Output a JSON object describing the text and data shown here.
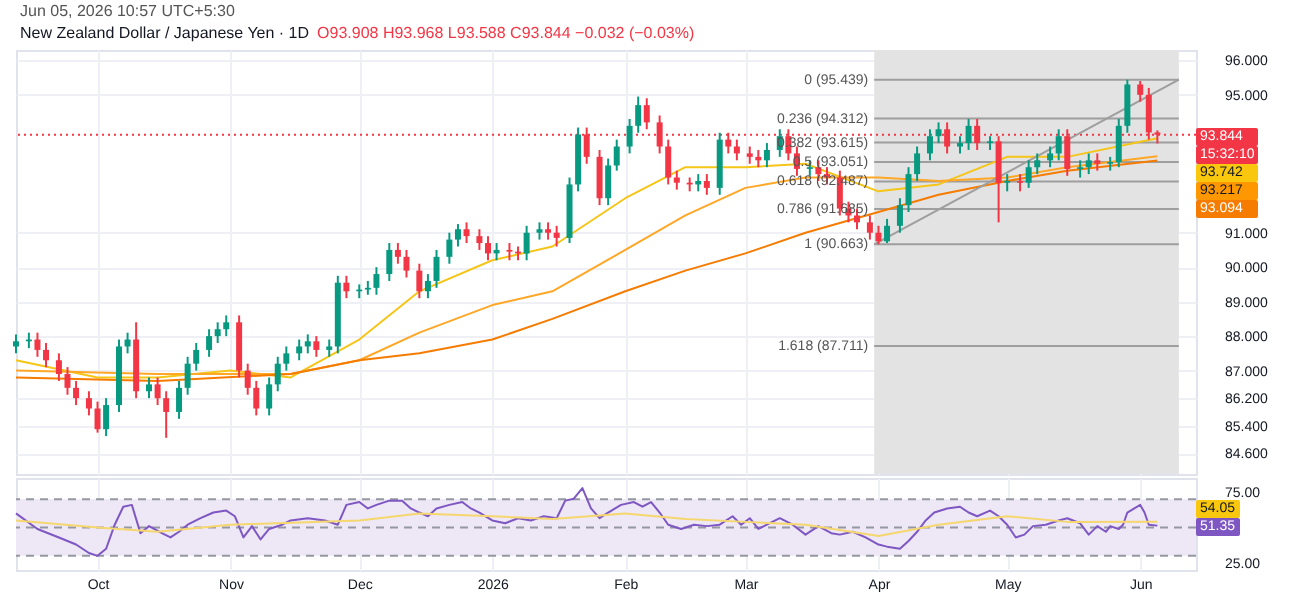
{
  "chart_data": [
    {
      "type": "candlestick",
      "title": "New Zealand Dollar / Japanese Yen · 1D",
      "subtitle": "O93.908 H93.968 L93.588 C93.844 −0.032 (−0.03%)",
      "annotations": [
        "Jun 05, 2026 10:57 UTC+5:30",
        "93.844",
        "15:32:10",
        "93.742",
        "93.217",
        "93.094"
      ],
      "xlim": [
        "2025-09-12",
        "2026-06-14"
      ],
      "ylim": [
        84.0,
        96.3
      ],
      "yticks": [
        {
          "value": 84.6,
          "label": "84.600"
        },
        {
          "value": 85.4,
          "label": "85.400"
        },
        {
          "value": 86.2,
          "label": "86.200"
        },
        {
          "value": 87,
          "label": "87.000"
        },
        {
          "value": 88,
          "label": "88.000"
        },
        {
          "value": 89,
          "label": "89.000"
        },
        {
          "value": 90,
          "label": "90.000"
        },
        {
          "value": 91,
          "label": "91.000"
        },
        {
          "value": 95,
          "label": "95.000"
        },
        {
          "value": 96,
          "label": "96.000"
        }
      ],
      "grid": true,
      "tick_labels": "y",
      "x": [
        "2025-09-12",
        "2025-09-15",
        "2025-09-17",
        "2025-09-19",
        "2025-09-22",
        "2025-09-24",
        "2025-09-26",
        "2025-09-29",
        "2025-10-01",
        "2025-10-03",
        "2025-10-06",
        "2025-10-08",
        "2025-10-10",
        "2025-10-13",
        "2025-10-15",
        "2025-10-17",
        "2025-10-20",
        "2025-10-22",
        "2025-10-24",
        "2025-10-27",
        "2025-10-29",
        "2025-10-31",
        "2025-11-03",
        "2025-11-05",
        "2025-11-07",
        "2025-11-10",
        "2025-11-12",
        "2025-11-14",
        "2025-11-17",
        "2025-11-19",
        "2025-11-21",
        "2025-11-24",
        "2025-11-26",
        "2025-11-28",
        "2025-12-01",
        "2025-12-03",
        "2025-12-05",
        "2025-12-08",
        "2025-12-10",
        "2025-12-12",
        "2025-12-15",
        "2025-12-17",
        "2025-12-19",
        "2025-12-22",
        "2025-12-24",
        "2025-12-26",
        "2025-12-29",
        "2025-12-31",
        "2026-01-02",
        "2026-01-05",
        "2026-01-07",
        "2026-01-09",
        "2026-01-12",
        "2026-01-14",
        "2026-01-16",
        "2026-01-19",
        "2026-01-21",
        "2026-01-23",
        "2026-01-26",
        "2026-01-28",
        "2026-01-30",
        "2026-02-02",
        "2026-02-04",
        "2026-02-06",
        "2026-02-09",
        "2026-02-11",
        "2026-02-13",
        "2026-02-16",
        "2026-02-18",
        "2026-02-20",
        "2026-02-23",
        "2026-02-25",
        "2026-02-27",
        "2026-03-02",
        "2026-03-04",
        "2026-03-06",
        "2026-03-09",
        "2026-03-11",
        "2026-03-13",
        "2026-03-16",
        "2026-03-18",
        "2026-03-20",
        "2026-03-23",
        "2026-03-25",
        "2026-03-27",
        "2026-03-30",
        "2026-04-01",
        "2026-04-03",
        "2026-04-06",
        "2026-04-08",
        "2026-04-10",
        "2026-04-13",
        "2026-04-15",
        "2026-04-17",
        "2026-04-20",
        "2026-04-22",
        "2026-04-24",
        "2026-04-27",
        "2026-04-29",
        "2026-05-01",
        "2026-05-04",
        "2026-05-06",
        "2026-05-08",
        "2026-05-11",
        "2026-05-13",
        "2026-05-15",
        "2026-05-18",
        "2026-05-20",
        "2026-05-22",
        "2026-05-25",
        "2026-05-27",
        "2026-05-29",
        "2026-06-01",
        "2026-06-03",
        "2026-06-05"
      ],
      "ohlc": [
        [
          87.7,
          88.05,
          87.5,
          87.85
        ],
        [
          87.85,
          88.1,
          87.65,
          87.9
        ],
        [
          87.9,
          88.1,
          87.4,
          87.6
        ],
        [
          87.6,
          87.8,
          87.1,
          87.3
        ],
        [
          87.3,
          87.5,
          86.7,
          86.9
        ],
        [
          86.9,
          87.1,
          86.3,
          86.5
        ],
        [
          86.5,
          86.7,
          86.0,
          86.2
        ],
        [
          86.2,
          86.4,
          85.7,
          85.9
        ],
        [
          85.9,
          86.1,
          85.2,
          85.3
        ],
        [
          85.3,
          86.2,
          85.1,
          86.0
        ],
        [
          86.0,
          87.9,
          85.8,
          87.7
        ],
        [
          87.7,
          88.1,
          87.5,
          87.9
        ],
        [
          87.9,
          88.4,
          86.2,
          86.4
        ],
        [
          86.4,
          86.8,
          86.2,
          86.6
        ],
        [
          86.6,
          86.8,
          86.0,
          86.2
        ],
        [
          86.2,
          86.4,
          85.05,
          85.8
        ],
        [
          85.8,
          86.7,
          85.6,
          86.5
        ],
        [
          86.5,
          87.4,
          86.3,
          87.2
        ],
        [
          87.2,
          87.8,
          87.0,
          87.6
        ],
        [
          87.6,
          88.2,
          87.4,
          88.0
        ],
        [
          88.0,
          88.4,
          87.8,
          88.2
        ],
        [
          88.2,
          88.6,
          88.0,
          88.4
        ],
        [
          88.4,
          88.6,
          86.8,
          87.0
        ],
        [
          87.0,
          87.2,
          86.3,
          86.5
        ],
        [
          86.5,
          86.7,
          85.7,
          85.9
        ],
        [
          85.9,
          86.8,
          85.7,
          86.6
        ],
        [
          86.6,
          87.4,
          86.4,
          87.2
        ],
        [
          87.2,
          87.7,
          87.0,
          87.5
        ],
        [
          87.5,
          87.9,
          87.3,
          87.7
        ],
        [
          87.7,
          88.05,
          87.5,
          87.85
        ],
        [
          87.85,
          88.0,
          87.4,
          87.6
        ],
        [
          87.6,
          87.9,
          87.4,
          87.7
        ],
        [
          87.7,
          89.75,
          87.5,
          89.55
        ],
        [
          89.55,
          89.75,
          89.1,
          89.3
        ],
        [
          89.3,
          89.5,
          89.1,
          89.35
        ],
        [
          89.35,
          89.6,
          89.2,
          89.4
        ],
        [
          89.4,
          90.0,
          89.2,
          89.8
        ],
        [
          89.8,
          90.7,
          89.6,
          90.5
        ],
        [
          90.5,
          90.7,
          90.1,
          90.3
        ],
        [
          90.3,
          90.5,
          89.7,
          89.9
        ],
        [
          89.9,
          90.1,
          89.1,
          89.3
        ],
        [
          89.3,
          89.8,
          89.1,
          89.6
        ],
        [
          89.6,
          90.5,
          89.4,
          90.3
        ],
        [
          90.3,
          91.0,
          90.1,
          90.8
        ],
        [
          90.8,
          91.25,
          90.6,
          91.1
        ],
        [
          91.1,
          91.3,
          90.7,
          90.9
        ],
        [
          90.9,
          91.1,
          90.5,
          90.7
        ],
        [
          90.7,
          90.9,
          90.2,
          90.4
        ],
        [
          90.4,
          90.7,
          90.2,
          90.5
        ],
        [
          90.5,
          90.7,
          90.2,
          90.45
        ],
        [
          90.45,
          90.6,
          90.2,
          90.4
        ],
        [
          90.4,
          91.2,
          90.2,
          91.0
        ],
        [
          91.0,
          91.3,
          90.8,
          91.1
        ],
        [
          91.1,
          91.3,
          90.8,
          91.0
        ],
        [
          91.0,
          91.2,
          90.6,
          90.85
        ],
        [
          90.85,
          92.6,
          90.7,
          92.4
        ],
        [
          92.4,
          94.05,
          92.2,
          93.85
        ],
        [
          93.85,
          94.05,
          93.0,
          93.2
        ],
        [
          93.2,
          93.4,
          91.8,
          92.0
        ],
        [
          92.0,
          93.15,
          91.8,
          92.95
        ],
        [
          92.95,
          93.7,
          92.8,
          93.5
        ],
        [
          93.5,
          94.3,
          93.3,
          94.1
        ],
        [
          94.1,
          94.95,
          93.9,
          94.7
        ],
        [
          94.7,
          94.9,
          94.0,
          94.2
        ],
        [
          94.2,
          94.4,
          93.3,
          93.5
        ],
        [
          93.5,
          93.7,
          92.4,
          92.6
        ],
        [
          92.6,
          92.8,
          92.25,
          92.45
        ],
        [
          92.45,
          92.6,
          92.2,
          92.4
        ],
        [
          92.4,
          92.7,
          92.2,
          92.5
        ],
        [
          92.5,
          92.7,
          92.1,
          92.3
        ],
        [
          92.3,
          93.9,
          92.1,
          93.7
        ],
        [
          93.7,
          93.9,
          93.3,
          93.5
        ],
        [
          93.5,
          93.7,
          93.1,
          93.3
        ],
        [
          93.3,
          93.5,
          93.0,
          93.2
        ],
        [
          93.2,
          93.4,
          92.9,
          93.1
        ],
        [
          93.1,
          93.6,
          92.9,
          93.4
        ],
        [
          93.4,
          94.0,
          93.2,
          93.8
        ],
        [
          93.8,
          94.0,
          93.1,
          93.3
        ],
        [
          93.3,
          93.5,
          92.65,
          92.85
        ],
        [
          92.85,
          93.1,
          92.65,
          92.9
        ],
        [
          92.9,
          93.1,
          92.5,
          92.7
        ],
        [
          92.7,
          92.9,
          92.4,
          92.6
        ],
        [
          92.6,
          92.8,
          91.5,
          91.7
        ],
        [
          91.7,
          91.9,
          91.3,
          91.5
        ],
        [
          91.5,
          91.7,
          91.1,
          91.3
        ],
        [
          91.3,
          91.5,
          90.8,
          91.0
        ],
        [
          91.0,
          91.2,
          90.663,
          90.75
        ],
        [
          90.75,
          91.4,
          90.7,
          91.2
        ],
        [
          91.2,
          92.0,
          91.0,
          91.8
        ],
        [
          91.8,
          92.9,
          91.6,
          92.7
        ],
        [
          92.7,
          93.5,
          92.5,
          93.3
        ],
        [
          93.3,
          94.0,
          93.1,
          93.8
        ],
        [
          93.8,
          94.2,
          93.6,
          94.0
        ],
        [
          94.0,
          94.2,
          93.3,
          93.5
        ],
        [
          93.5,
          93.8,
          93.3,
          93.6
        ],
        [
          93.6,
          94.3,
          93.4,
          94.1
        ],
        [
          94.1,
          94.3,
          93.4,
          93.6
        ],
        [
          93.6,
          93.8,
          93.4,
          93.65
        ],
        [
          93.65,
          93.8,
          91.3,
          92.45
        ],
        [
          92.45,
          92.7,
          92.2,
          92.5
        ],
        [
          92.5,
          92.7,
          92.2,
          92.45
        ],
        [
          92.45,
          93.1,
          92.3,
          92.9
        ],
        [
          92.9,
          93.3,
          92.7,
          93.1
        ],
        [
          93.1,
          93.5,
          92.9,
          93.3
        ],
        [
          93.3,
          94.0,
          93.1,
          93.8
        ],
        [
          93.8,
          94.0,
          92.65,
          92.85
        ],
        [
          92.85,
          93.1,
          92.6,
          92.9
        ],
        [
          92.9,
          93.3,
          92.7,
          93.1
        ],
        [
          93.1,
          93.3,
          92.8,
          93.0
        ],
        [
          93.0,
          93.2,
          92.8,
          93.05
        ],
        [
          93.05,
          94.3,
          92.9,
          94.1
        ],
        [
          94.1,
          95.439,
          93.9,
          95.3
        ],
        [
          95.3,
          95.4,
          94.8,
          95.0
        ],
        [
          95.0,
          95.2,
          93.7,
          93.908
        ],
        [
          93.908,
          93.968,
          93.588,
          93.844
        ]
      ],
      "series": [
        {
          "type": "line",
          "color": "#f5c518",
          "x": [
            "2025-09-12",
            "2025-10-01",
            "2025-10-15",
            "2025-11-01",
            "2025-11-15",
            "2025-12-01",
            "2025-12-15",
            "2026-01-01",
            "2026-01-15",
            "2026-02-01",
            "2026-02-15",
            "2026-03-01",
            "2026-03-15",
            "2026-04-01",
            "2026-04-15",
            "2026-05-01",
            "2026-05-15",
            "2026-06-05"
          ],
          "values": [
            87.3,
            86.8,
            86.8,
            87.0,
            86.8,
            87.9,
            89.3,
            90.2,
            90.6,
            92.0,
            92.9,
            92.9,
            93.0,
            92.2,
            92.4,
            93.2,
            93.2,
            93.742
          ]
        },
        {
          "type": "line",
          "color": "#ffa726",
          "x": [
            "2025-09-12",
            "2025-10-15",
            "2025-11-15",
            "2025-12-01",
            "2025-12-15",
            "2026-01-01",
            "2026-01-15",
            "2026-02-01",
            "2026-02-15",
            "2026-03-01",
            "2026-03-15",
            "2026-04-01",
            "2026-04-15",
            "2026-05-01",
            "2026-05-15",
            "2026-06-05"
          ],
          "values": [
            87.0,
            86.9,
            86.9,
            87.3,
            88.1,
            88.9,
            89.3,
            90.5,
            91.5,
            92.3,
            92.6,
            92.6,
            92.5,
            92.6,
            92.9,
            93.217
          ]
        },
        {
          "type": "line",
          "color": "#f57c00",
          "x": [
            "2025-09-12",
            "2025-10-15",
            "2025-11-15",
            "2025-12-01",
            "2025-12-15",
            "2026-01-01",
            "2026-01-15",
            "2026-02-01",
            "2026-02-15",
            "2026-03-01",
            "2026-03-15",
            "2026-04-01",
            "2026-04-15",
            "2026-05-01",
            "2026-05-15",
            "2026-06-05"
          ],
          "values": [
            86.8,
            86.7,
            86.9,
            87.3,
            87.5,
            87.9,
            88.5,
            89.3,
            89.9,
            90.4,
            91.0,
            91.6,
            92.1,
            92.5,
            92.8,
            93.094
          ]
        },
        {
          "type": "line",
          "color": "#9e9e9e",
          "x": [
            "2026-03-31",
            "2026-06-10"
          ],
          "values": [
            90.663,
            95.439
          ]
        }
      ],
      "bands": [
        {
          "axis": "x",
          "from": "2026-03-31",
          "to": "2026-06-10",
          "color": "#e3e3e3"
        }
      ],
      "ref_lines": [
        {
          "axis": "y",
          "value": 95.439,
          "label": "0 (95.439)",
          "color": "#9e9e9e"
        },
        {
          "axis": "y",
          "value": 94.312,
          "label": "0.236 (94.312)",
          "color": "#9e9e9e"
        },
        {
          "axis": "y",
          "value": 93.615,
          "label": "0.382 (93.615)",
          "color": "#9e9e9e"
        },
        {
          "axis": "y",
          "value": 93.051,
          "label": "0.5 (93.051)",
          "color": "#9e9e9e"
        },
        {
          "axis": "y",
          "value": 92.487,
          "label": "0.618 (92.487)",
          "color": "#9e9e9e"
        },
        {
          "axis": "y",
          "value": 91.685,
          "label": "0.786 (91.685)",
          "color": "#9e9e9e"
        },
        {
          "axis": "y",
          "value": 90.663,
          "label": "1 (90.663)",
          "color": "#9e9e9e"
        },
        {
          "axis": "y",
          "value": 87.711,
          "label": "1.618 (87.711)",
          "color": "#9e9e9e"
        },
        {
          "axis": "y",
          "value": 93.844,
          "color": "#f23645",
          "line_style": "dotted"
        }
      ]
    },
    {
      "type": "line",
      "annotations": [
        "54.05",
        "51.35"
      ],
      "xlim": [
        "2025-09-12",
        "2026-06-14"
      ],
      "xticks": [
        {
          "value": "2025-10-01",
          "label": "Oct"
        },
        {
          "value": "2025-11-01",
          "label": "Nov"
        },
        {
          "value": "2025-12-01",
          "label": "Dec"
        },
        {
          "value": "2026-01-01",
          "label": "2026"
        },
        {
          "value": "2026-02-01",
          "label": "Feb"
        },
        {
          "value": "2026-03-01",
          "label": "Mar"
        },
        {
          "value": "2026-04-01",
          "label": "Apr"
        },
        {
          "value": "2026-05-01",
          "label": "May"
        },
        {
          "value": "2026-06-01",
          "label": "Jun"
        }
      ],
      "ylim": [
        20,
        85
      ],
      "yticks": [
        {
          "value": 25,
          "label": "25.00"
        },
        {
          "value": 75,
          "label": "75.00"
        }
      ],
      "grid": "x",
      "bands": [
        {
          "axis": "y",
          "from": 30,
          "to": 70,
          "color": "#ede7f6"
        }
      ],
      "ref_lines": [
        {
          "axis": "y",
          "value": 70,
          "color": "#9598a1",
          "line_style": "dashed"
        },
        {
          "axis": "y",
          "value": 50,
          "color": "#9598a1",
          "line_style": "dashed"
        },
        {
          "axis": "y",
          "value": 30,
          "color": "#9598a1",
          "line_style": "dashed"
        }
      ],
      "series": [
        {
          "type": "line",
          "color": "#7e57c2",
          "x": [
            "2025-09-12",
            "2025-09-17",
            "2025-09-22",
            "2025-09-26",
            "2025-09-29",
            "2025-10-01",
            "2025-10-03",
            "2025-10-05",
            "2025-10-07",
            "2025-10-09",
            "2025-10-11",
            "2025-10-13",
            "2025-10-16",
            "2025-10-18",
            "2025-10-20",
            "2025-10-22",
            "2025-10-25",
            "2025-10-28",
            "2025-10-31",
            "2025-11-02",
            "2025-11-04",
            "2025-11-06",
            "2025-11-08",
            "2025-11-10",
            "2025-11-13",
            "2025-11-15",
            "2025-11-19",
            "2025-11-23",
            "2025-11-26",
            "2025-11-28",
            "2025-12-01",
            "2025-12-03",
            "2025-12-05",
            "2025-12-08",
            "2025-12-11",
            "2025-12-13",
            "2025-12-15",
            "2025-12-17",
            "2025-12-19",
            "2025-12-22",
            "2025-12-25",
            "2025-12-27",
            "2025-12-29",
            "2026-01-01",
            "2026-01-04",
            "2026-01-07",
            "2026-01-10",
            "2026-01-13",
            "2026-01-16",
            "2026-01-18",
            "2026-01-20",
            "2026-01-22",
            "2026-01-24",
            "2026-01-26",
            "2026-01-28",
            "2026-01-31",
            "2026-02-03",
            "2026-02-05",
            "2026-02-07",
            "2026-02-09",
            "2026-02-11",
            "2026-02-14",
            "2026-02-17",
            "2026-02-20",
            "2026-02-23",
            "2026-02-26",
            "2026-02-28",
            "2026-03-02",
            "2026-03-04",
            "2026-03-06",
            "2026-03-09",
            "2026-03-12",
            "2026-03-15",
            "2026-03-18",
            "2026-03-21",
            "2026-03-23",
            "2026-03-26",
            "2026-03-29",
            "2026-04-01",
            "2026-04-03",
            "2026-04-06",
            "2026-04-08",
            "2026-04-10",
            "2026-04-12",
            "2026-04-14",
            "2026-04-17",
            "2026-04-20",
            "2026-04-22",
            "2026-04-24",
            "2026-04-27",
            "2026-04-29",
            "2026-05-01",
            "2026-05-03",
            "2026-05-05",
            "2026-05-07",
            "2026-05-10",
            "2026-05-13",
            "2026-05-15",
            "2026-05-18",
            "2026-05-20",
            "2026-05-22",
            "2026-05-24",
            "2026-05-25",
            "2026-05-27",
            "2026-05-28",
            "2026-05-29",
            "2026-06-01",
            "2026-06-02",
            "2026-06-03",
            "2026-06-05"
          ],
          "values": [
            60,
            49,
            43,
            38,
            32,
            30,
            35,
            52,
            64.7,
            66,
            46,
            51,
            46,
            43,
            47,
            52,
            56.6,
            60.6,
            62,
            58,
            43,
            51,
            41.6,
            49,
            52,
            55,
            56.6,
            55,
            52,
            66,
            68,
            63.5,
            66,
            69,
            69,
            63.5,
            60.6,
            58,
            63.5,
            66,
            68,
            63.5,
            60.6,
            55,
            53,
            56.6,
            55,
            58,
            56.6,
            69,
            70.4,
            77.9,
            63.5,
            56.6,
            60.6,
            66,
            68,
            64.7,
            68,
            60.6,
            52,
            49,
            52,
            51,
            52,
            58,
            52,
            56.6,
            49,
            52,
            56.6,
            52,
            45,
            51,
            46,
            45,
            47,
            43,
            38,
            36.5,
            35,
            40.5,
            47,
            55,
            60.6,
            63.5,
            64.7,
            60.6,
            58,
            62,
            58,
            52,
            43,
            45,
            51,
            52,
            55,
            56.6,
            53,
            45,
            51,
            47,
            51,
            49,
            52,
            60.6,
            66,
            60.6,
            52,
            51.35
          ]
        },
        {
          "type": "line",
          "color": "#f5d76e",
          "x": [
            "2025-09-12",
            "2025-10-01",
            "2025-10-15",
            "2025-11-01",
            "2025-12-01",
            "2025-12-15",
            "2026-01-01",
            "2026-01-15",
            "2026-02-01",
            "2026-02-15",
            "2026-03-01",
            "2026-03-15",
            "2026-04-01",
            "2026-04-15",
            "2026-05-01",
            "2026-05-15",
            "2026-06-05"
          ],
          "values": [
            55,
            50,
            47,
            52,
            55,
            60,
            58,
            56,
            60,
            56,
            54,
            52,
            44,
            52,
            58,
            54,
            54.05
          ]
        }
      ]
    }
  ]
}
